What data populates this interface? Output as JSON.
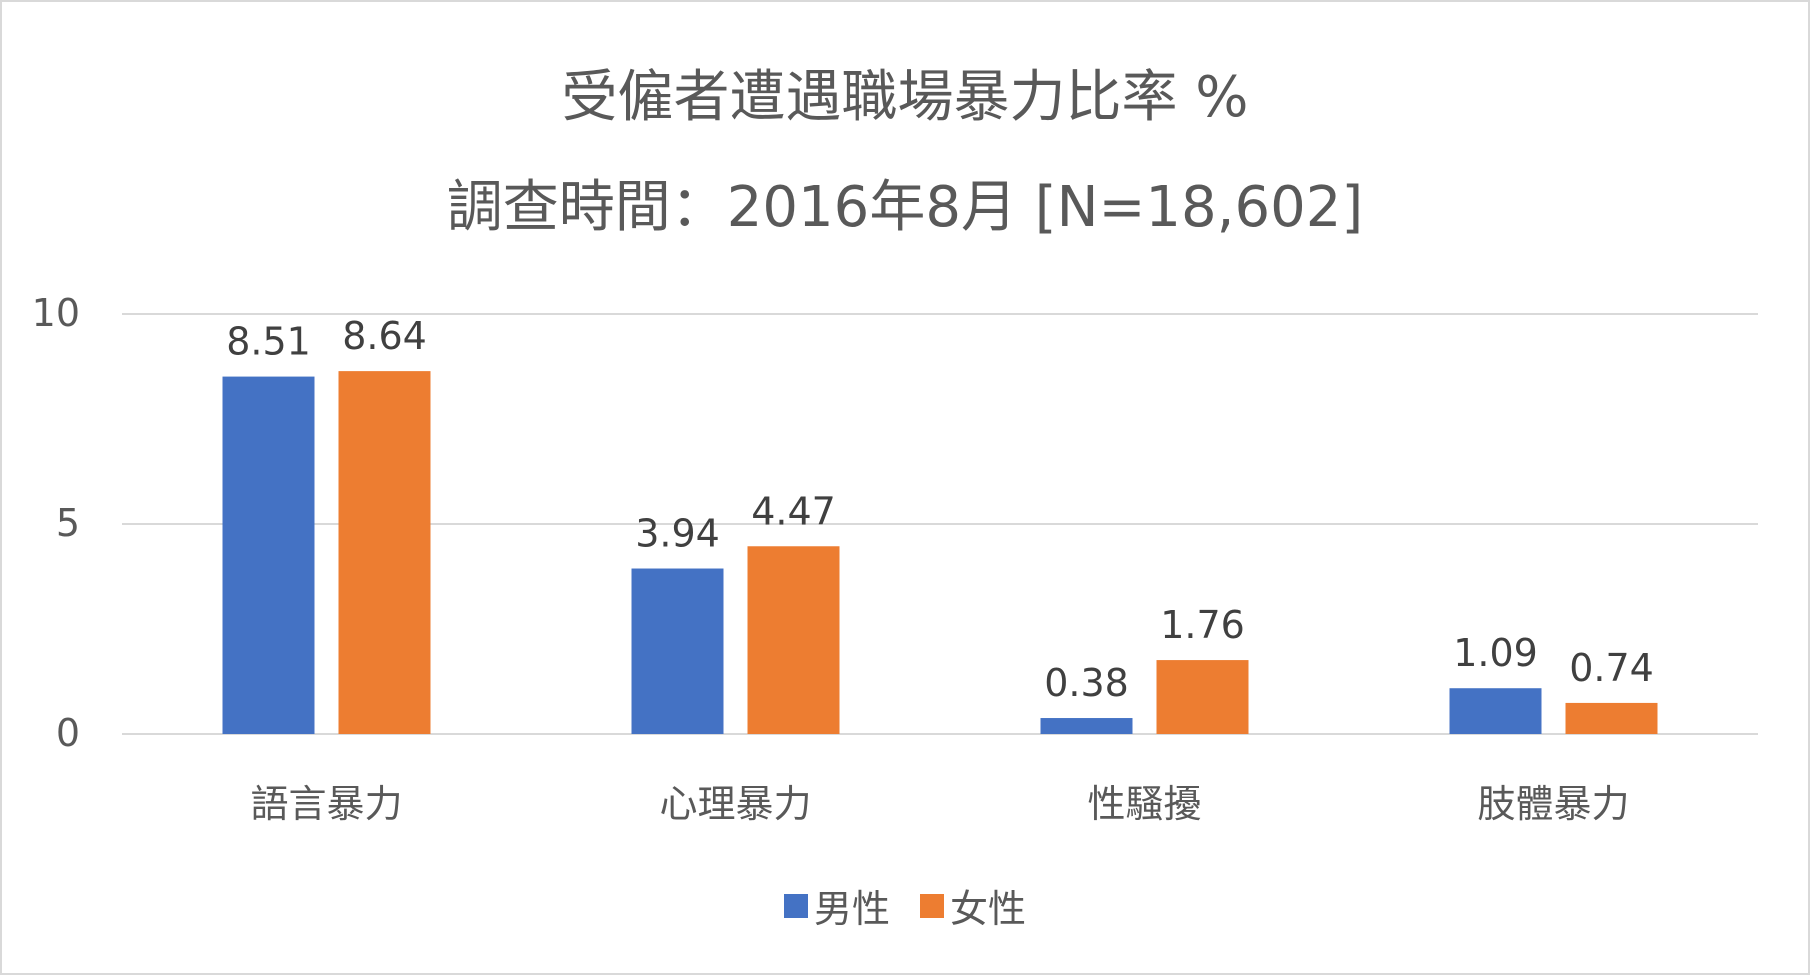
{
  "chart_data": {
    "type": "bar",
    "title": "受僱者遭遇職場暴力比率 %",
    "subtitle": "調查時間：2016年8月  [N=18,602]",
    "categories": [
      "語言暴力",
      "心理暴力",
      "性騷擾",
      "肢體暴力"
    ],
    "series": [
      {
        "name": "男性",
        "color": "#4472C4",
        "values": [
          8.51,
          3.94,
          0.38,
          1.09
        ],
        "labels": [
          "8.51",
          "3.94",
          "0.38",
          "1.09"
        ]
      },
      {
        "name": "女性",
        "color": "#ED7D31",
        "values": [
          8.64,
          4.47,
          1.76,
          0.74
        ],
        "labels": [
          "8.64",
          "4.47",
          "1.76",
          "0.74"
        ]
      }
    ],
    "ylim": [
      0,
      10
    ],
    "yticks": [
      "0",
      "5",
      "10"
    ],
    "ytick_values": [
      0,
      5,
      10
    ],
    "grid": true,
    "legend_position": "bottom",
    "gridline_color": "#d9d9d9"
  }
}
